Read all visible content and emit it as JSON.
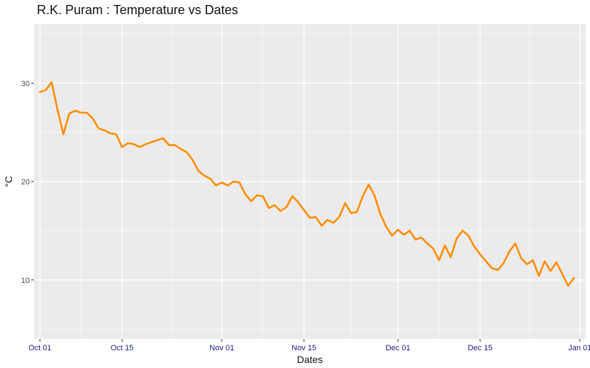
{
  "chart_data": {
    "type": "line",
    "title": "R.K. Puram : Temperature vs Dates",
    "xlabel": "Dates",
    "ylabel": "°C",
    "ylim": [
      4,
      36
    ],
    "xlim": [
      "2017-09-30",
      "2018-01-02"
    ],
    "x_ticks": [
      "Oct 01",
      "Oct 15",
      "Nov 01",
      "Nov 15",
      "Dec 01",
      "Dec 15",
      "Jan 01"
    ],
    "y_ticks": [
      "10",
      "20",
      "30"
    ],
    "grid": true,
    "legend": "none",
    "colors": {
      "line": "#ff8c00",
      "panel": "#ebebeb",
      "grid": "#ffffff",
      "tick_x": "#1a1a80",
      "tick_y": "#4d4d4d"
    },
    "series": [
      {
        "dates": [
          "2017-10-01",
          "2017-10-02",
          "2017-10-03",
          "2017-10-04",
          "2017-10-05",
          "2017-10-06",
          "2017-10-07",
          "2017-10-08",
          "2017-10-09",
          "2017-10-10",
          "2017-10-11",
          "2017-10-12",
          "2017-10-13",
          "2017-10-14",
          "2017-10-15",
          "2017-10-16",
          "2017-10-17",
          "2017-10-18",
          "2017-10-19",
          "2017-10-20",
          "2017-10-21",
          "2017-10-22",
          "2017-10-23",
          "2017-10-24",
          "2017-10-25",
          "2017-10-26",
          "2017-10-27",
          "2017-10-28",
          "2017-10-29",
          "2017-10-30",
          "2017-10-31",
          "2017-11-01",
          "2017-11-02",
          "2017-11-03",
          "2017-11-04",
          "2017-11-05",
          "2017-11-06",
          "2017-11-07",
          "2017-11-08",
          "2017-11-09",
          "2017-11-10",
          "2017-11-11",
          "2017-11-12",
          "2017-11-13",
          "2017-11-14",
          "2017-11-15",
          "2017-11-16",
          "2017-11-17",
          "2017-11-18",
          "2017-11-19",
          "2017-11-20",
          "2017-11-21",
          "2017-11-22",
          "2017-11-23",
          "2017-11-24",
          "2017-11-25",
          "2017-11-26",
          "2017-11-27",
          "2017-11-28",
          "2017-11-29",
          "2017-11-30",
          "2017-12-01",
          "2017-12-02",
          "2017-12-03",
          "2017-12-04",
          "2017-12-05",
          "2017-12-06",
          "2017-12-07",
          "2017-12-08",
          "2017-12-09",
          "2017-12-10",
          "2017-12-11",
          "2017-12-12",
          "2017-12-13",
          "2017-12-14",
          "2017-12-15",
          "2017-12-16",
          "2017-12-17",
          "2017-12-18",
          "2017-12-19",
          "2017-12-20",
          "2017-12-21",
          "2017-12-22",
          "2017-12-23",
          "2017-12-24",
          "2017-12-25",
          "2017-12-26",
          "2017-12-27",
          "2017-12-28",
          "2017-12-29",
          "2017-12-30",
          "2017-12-31"
        ],
        "values": [
          29.1,
          29.3,
          30.1,
          27.3,
          24.8,
          26.9,
          27.2,
          27.0,
          27.0,
          26.4,
          25.4,
          25.2,
          24.9,
          24.8,
          23.5,
          23.9,
          23.8,
          23.5,
          23.8,
          24.0,
          24.2,
          24.4,
          23.7,
          23.7,
          23.3,
          23.0,
          22.2,
          21.1,
          20.6,
          20.3,
          19.6,
          19.9,
          19.6,
          20.0,
          19.9,
          18.7,
          18.0,
          18.6,
          18.5,
          17.3,
          17.6,
          17.0,
          17.4,
          18.5,
          17.9,
          17.1,
          16.3,
          16.4,
          15.5,
          16.1,
          15.8,
          16.4,
          17.8,
          16.8,
          16.9,
          18.5,
          19.7,
          18.6,
          16.7,
          15.4,
          14.5,
          15.1,
          14.6,
          15.0,
          14.1,
          14.3,
          13.7,
          13.2,
          12.0,
          13.5,
          12.3,
          14.2,
          15.0,
          14.5,
          13.4,
          12.6,
          11.9,
          11.2,
          11.0,
          11.7,
          12.9,
          13.7,
          12.2,
          11.6,
          12.0,
          10.4,
          11.9,
          10.9,
          11.8,
          10.6,
          9.4,
          10.2
        ]
      }
    ]
  }
}
